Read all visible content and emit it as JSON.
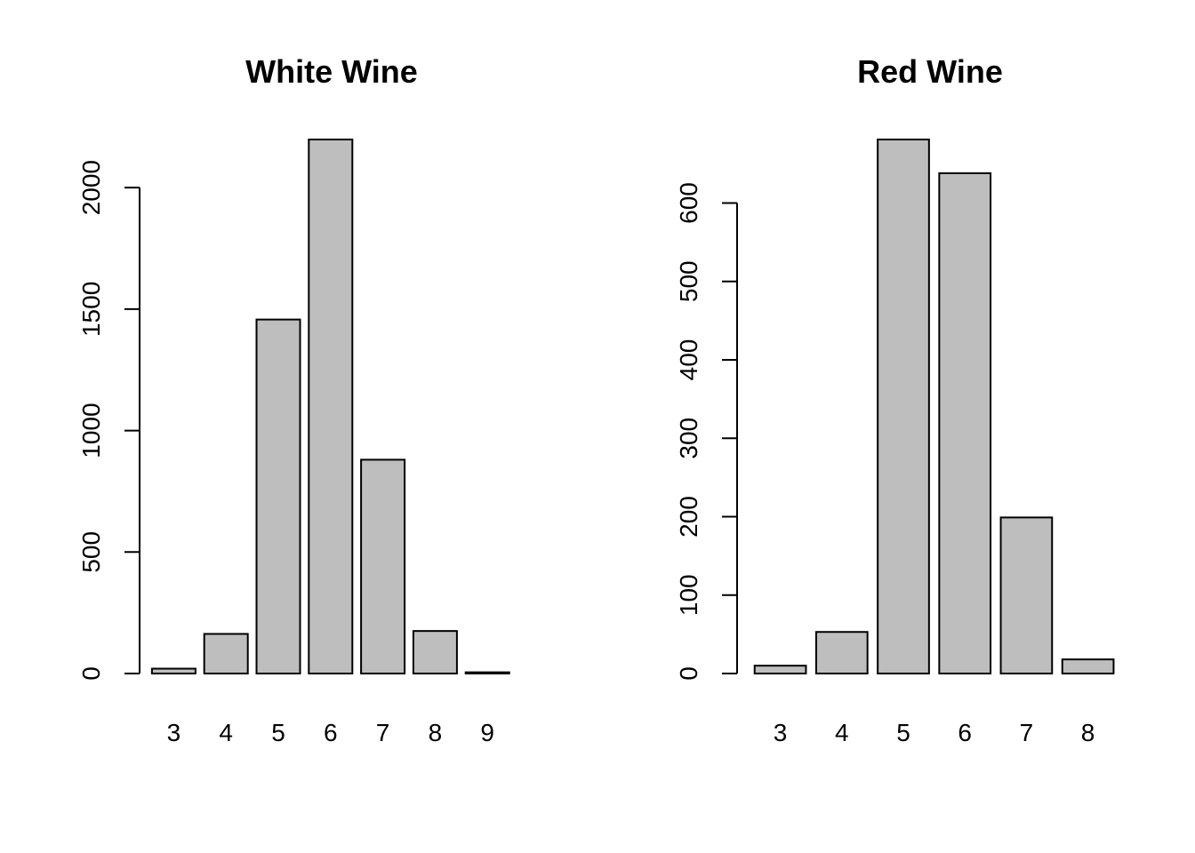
{
  "chart_data": [
    {
      "type": "bar",
      "title": "White Wine",
      "xlabel": "",
      "ylabel": "",
      "categories": [
        "3",
        "4",
        "5",
        "6",
        "7",
        "8",
        "9"
      ],
      "values": [
        20,
        163,
        1457,
        2198,
        880,
        175,
        5
      ],
      "ylim": [
        0,
        2198
      ],
      "yticks": [
        0,
        500,
        1000,
        1500,
        2000
      ],
      "bar_fill": "#bebebe",
      "bar_stroke": "#000000",
      "grid": false
    },
    {
      "type": "bar",
      "title": "Red Wine",
      "xlabel": "",
      "ylabel": "",
      "categories": [
        "3",
        "4",
        "5",
        "6",
        "7",
        "8"
      ],
      "values": [
        10,
        53,
        681,
        638,
        199,
        18
      ],
      "ylim": [
        0,
        681
      ],
      "yticks": [
        0,
        100,
        200,
        300,
        400,
        500,
        600
      ],
      "bar_fill": "#bebebe",
      "bar_stroke": "#000000",
      "grid": false
    }
  ]
}
